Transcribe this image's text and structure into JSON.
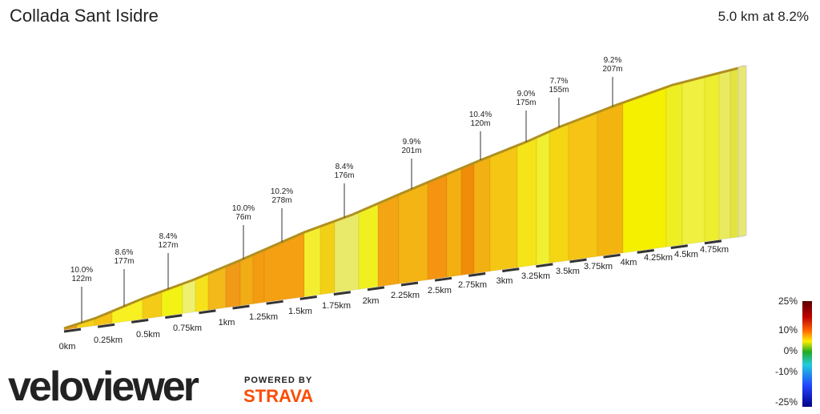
{
  "header": {
    "title": "Collada Sant Isidre",
    "summary": "5.0 km at 8.2%"
  },
  "annotations": [
    {
      "grade": "10.0%",
      "length": "122m"
    },
    {
      "grade": "8.6%",
      "length": "177m"
    },
    {
      "grade": "8.4%",
      "length": "127m"
    },
    {
      "grade": "10.0%",
      "length": "76m"
    },
    {
      "grade": "10.2%",
      "length": "278m"
    },
    {
      "grade": "8.4%",
      "length": "176m"
    },
    {
      "grade": "9.9%",
      "length": "201m"
    },
    {
      "grade": "10.4%",
      "length": "120m"
    },
    {
      "grade": "9.0%",
      "length": "175m"
    },
    {
      "grade": "7.7%",
      "length": "155m"
    },
    {
      "grade": "9.2%",
      "length": "207m"
    }
  ],
  "distance_labels": [
    "0km",
    "0.25km",
    "0.5km",
    "0.75km",
    "1km",
    "1.25km",
    "1.5km",
    "1.75km",
    "2km",
    "2.25km",
    "2.5km",
    "2.75km",
    "3km",
    "3.25km",
    "3.5km",
    "3.75km",
    "4km",
    "4.25km",
    "4.5km",
    "4.75km"
  ],
  "legend": {
    "labels": [
      "25%",
      "10%",
      "0%",
      "-10%",
      "-25%"
    ]
  },
  "branding": {
    "logo": "veloviewer",
    "powered_by": "POWERED BY",
    "partner": "STRAVA"
  }
}
